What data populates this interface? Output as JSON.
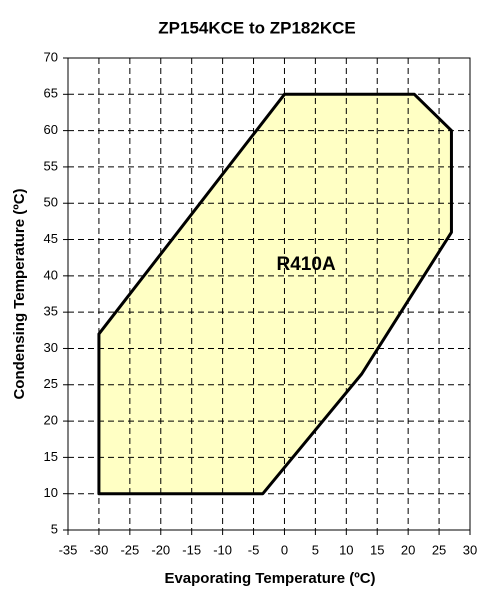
{
  "chart_data": {
    "type": "polygon",
    "title": "ZP154KCE to ZP182KCE",
    "x_label": "Evaporating Temperature (ºC)",
    "y_label": "Condensing Temperature (ºC)",
    "annotation": "R410A",
    "series": [
      {
        "name": "R410A",
        "color": "#ffffc4",
        "x": [
          -30,
          -30,
          0,
          21,
          27,
          27,
          12.5,
          -3.5
        ],
        "values": [
          10,
          32,
          65,
          65,
          60,
          46,
          26.5,
          10
        ]
      }
    ],
    "xlim": [
      -35,
      30
    ],
    "xticks": [
      -35,
      -30,
      -25,
      -20,
      -15,
      -10,
      -5,
      0,
      5,
      10,
      15,
      20,
      25,
      30
    ],
    "ylim": [
      5,
      70
    ],
    "yticks": [
      5,
      10,
      15,
      20,
      25,
      30,
      35,
      40,
      45,
      50,
      55,
      60,
      65,
      70
    ],
    "grid": true
  }
}
